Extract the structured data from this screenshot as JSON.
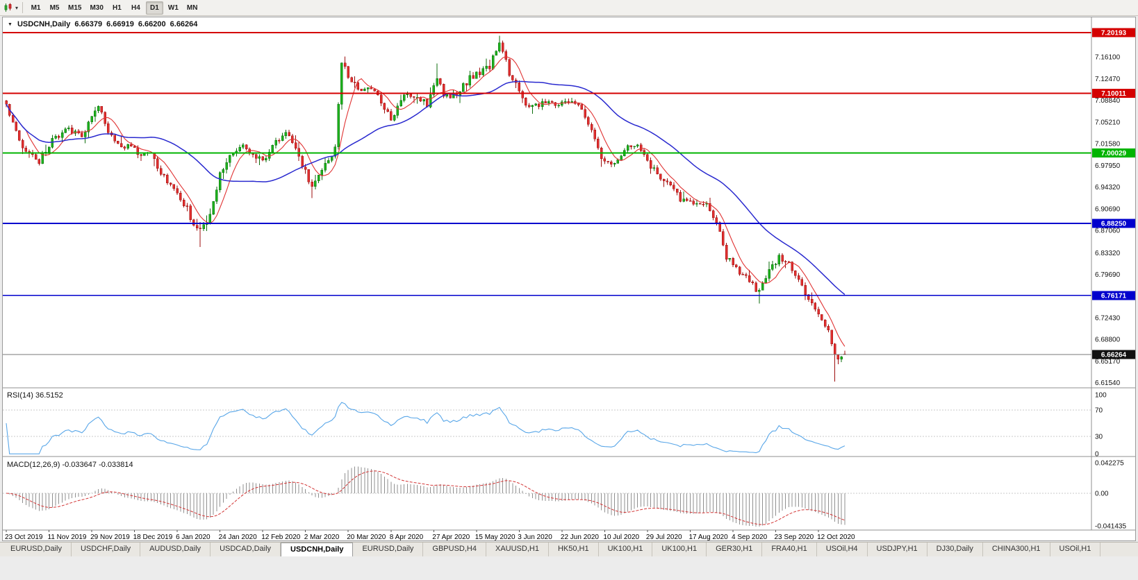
{
  "toolbar": {
    "timeframes": [
      "M1",
      "M5",
      "M15",
      "M30",
      "H1",
      "H4",
      "D1",
      "W1",
      "MN"
    ],
    "active_timeframe": "D1"
  },
  "quote": {
    "symbol_label": "USDCNH,Daily",
    "open": "6.66379",
    "high": "6.66919",
    "low": "6.66200",
    "close": "6.66264"
  },
  "indicators": {
    "rsi_label": "RSI(14) 36.5152",
    "macd_label": "MACD(12,26,9) -0.033647 -0.033814"
  },
  "axes": {
    "price_labels": [
      "7.16100",
      "7.12470",
      "7.08840",
      "7.05210",
      "7.01580",
      "6.97950",
      "6.94320",
      "6.90690",
      "6.87060",
      "6.83320",
      "6.79690",
      "6.76060",
      "6.72430",
      "6.68800",
      "6.65170",
      "6.61540"
    ],
    "rsi_labels": [
      "100",
      "70",
      "30",
      "0"
    ],
    "macd_labels": [
      "0.042275",
      "0.00",
      "-0.041435"
    ],
    "date_labels": [
      "23 Oct 2019",
      "11 Nov 2019",
      "29 Nov 2019",
      "18 Dec 2019",
      "6 Jan 2020",
      "24 Jan 2020",
      "12 Feb 2020",
      "2 Mar 2020",
      "20 Mar 2020",
      "8 Apr 2020",
      "27 Apr 2020",
      "15 May 2020",
      "3 Jun 2020",
      "22 Jun 2020",
      "10 Jul 2020",
      "29 Jul 2020",
      "17 Aug 2020",
      "4 Sep 2020",
      "23 Sep 2020",
      "12 Oct 2020"
    ]
  },
  "levels": [
    {
      "label": "7.20193",
      "price": 7.20193,
      "line_color": "#d40000",
      "badge_color": "#d40000",
      "current": false
    },
    {
      "label": "7.10011",
      "price": 7.10011,
      "line_color": "#d40000",
      "badge_color": "#d40000",
      "current": false
    },
    {
      "label": "7.00029",
      "price": 7.00029,
      "line_color": "#00b400",
      "badge_color": "#00b400",
      "current": false
    },
    {
      "label": "6.88250",
      "price": 6.8825,
      "line_color": "#0000cd",
      "badge_color": "#0000cd",
      "current": false
    },
    {
      "label": "6.76171",
      "price": 6.76171,
      "line_color": "#0000cd",
      "badge_color": "#0000cd",
      "current": false
    },
    {
      "label": "6.66264",
      "price": 6.66264,
      "line_color": "#777777",
      "badge_color": "#111111",
      "current": true
    }
  ],
  "tabs": {
    "items": [
      "EURUSD,Daily",
      "USDCHF,Daily",
      "AUDUSD,Daily",
      "USDCAD,Daily",
      "USDCNH,Daily",
      "EURUSD,Daily",
      "GBPUSD,H4",
      "XAUUSD,H1",
      "HK50,H1",
      "UK100,H1",
      "UK100,H1",
      "GER30,H1",
      "FRA40,H1",
      "USOil,H4",
      "USDJPY,H1",
      "DJ30,Daily",
      "CHINA300,H1",
      "USOil,H1"
    ],
    "active_index": 4
  },
  "colors": {
    "candle_up": "#1db11d",
    "candle_up_stroke": "#0b6d0b",
    "candle_down": "#e02f2f",
    "candle_down_stroke": "#9c0d0d",
    "ma_fast": "#e03333",
    "ma_slow": "#2929cf",
    "rsi_line": "#58a6e8",
    "macd_hist": "#8f8f8f",
    "macd_signal": "#d23333",
    "axis_text": "#111111"
  },
  "chart_data": {
    "type": "candlestick",
    "symbol": "USDCNH",
    "timeframe": "Daily",
    "bar_count": 256,
    "visible_price_range": [
      6.6081,
      7.2228
    ],
    "labels_every_n_bars": 13,
    "price_anchors": [
      [
        0,
        7.081
      ],
      [
        5,
        7.011
      ],
      [
        10,
        6.988
      ],
      [
        14,
        7.023
      ],
      [
        19,
        7.04
      ],
      [
        23,
        7.028
      ],
      [
        28,
        7.081
      ],
      [
        30,
        7.048
      ],
      [
        32,
        7.029
      ],
      [
        35,
        7.005
      ],
      [
        38,
        7.012
      ],
      [
        41,
        6.994
      ],
      [
        44,
        6.997
      ],
      [
        48,
        6.959
      ],
      [
        52,
        6.936
      ],
      [
        55,
        6.907
      ],
      [
        57,
        6.878
      ],
      [
        59,
        6.872
      ],
      [
        62,
        6.895
      ],
      [
        65,
        6.965
      ],
      [
        68,
        6.994
      ],
      [
        71,
        7.011
      ],
      [
        74,
        7.005
      ],
      [
        78,
        6.988
      ],
      [
        82,
        7.017
      ],
      [
        85,
        7.034
      ],
      [
        88,
        7.005
      ],
      [
        91,
        6.971
      ],
      [
        93,
        6.942
      ],
      [
        97,
        6.982
      ],
      [
        100,
        7.005
      ],
      [
        102,
        7.151
      ],
      [
        105,
        7.122
      ],
      [
        108,
        7.104
      ],
      [
        111,
        7.11
      ],
      [
        113,
        7.098
      ],
      [
        117,
        7.058
      ],
      [
        121,
        7.093
      ],
      [
        125,
        7.098
      ],
      [
        128,
        7.081
      ],
      [
        131,
        7.125
      ],
      [
        133,
        7.098
      ],
      [
        135,
        7.093
      ],
      [
        138,
        7.104
      ],
      [
        141,
        7.127
      ],
      [
        144,
        7.133
      ],
      [
        147,
        7.145
      ],
      [
        150,
        7.186
      ],
      [
        152,
        7.155
      ],
      [
        153,
        7.133
      ],
      [
        156,
        7.104
      ],
      [
        159,
        7.075
      ],
      [
        162,
        7.081
      ],
      [
        165,
        7.087
      ],
      [
        168,
        7.081
      ],
      [
        172,
        7.087
      ],
      [
        175,
        7.075
      ],
      [
        178,
        7.04
      ],
      [
        181,
        6.994
      ],
      [
        184,
        6.982
      ],
      [
        187,
        7.0
      ],
      [
        191,
        7.017
      ],
      [
        194,
        6.994
      ],
      [
        197,
        6.971
      ],
      [
        200,
        6.953
      ],
      [
        203,
        6.936
      ],
      [
        206,
        6.918
      ],
      [
        210,
        6.913
      ],
      [
        213,
        6.918
      ],
      [
        216,
        6.883
      ],
      [
        219,
        6.825
      ],
      [
        222,
        6.808
      ],
      [
        225,
        6.79
      ],
      [
        229,
        6.767
      ],
      [
        232,
        6.802
      ],
      [
        235,
        6.825
      ],
      [
        238,
        6.813
      ],
      [
        241,
        6.79
      ],
      [
        244,
        6.755
      ],
      [
        248,
        6.726
      ],
      [
        251,
        6.685
      ],
      [
        253,
        6.65
      ],
      [
        254,
        6.658
      ],
      [
        255,
        6.66264
      ]
    ],
    "forced_extremes": {
      "highs": [
        [
          103,
          7.162
        ],
        [
          131,
          7.15
        ],
        [
          150,
          7.1966
        ]
      ],
      "lows": [
        [
          59,
          6.843
        ],
        [
          93,
          6.925
        ],
        [
          229,
          6.748
        ],
        [
          252,
          6.6175
        ]
      ]
    },
    "last_bar": {
      "open": 6.66379,
      "high": 6.66919,
      "low": 6.662,
      "close": 6.66264
    },
    "overlays": [
      {
        "name": "ma-fast",
        "period": 7,
        "color": "#e03333"
      },
      {
        "name": "ma-slow",
        "period": 34,
        "color": "#2929cf"
      }
    ],
    "rsi": {
      "period": 14,
      "last_value": 36.5152,
      "levels": [
        70,
        30
      ],
      "range": [
        0,
        100
      ]
    },
    "macd": {
      "fast": 12,
      "slow": 26,
      "signal": 9,
      "last_main": -0.033647,
      "last_signal": -0.033814
    }
  }
}
